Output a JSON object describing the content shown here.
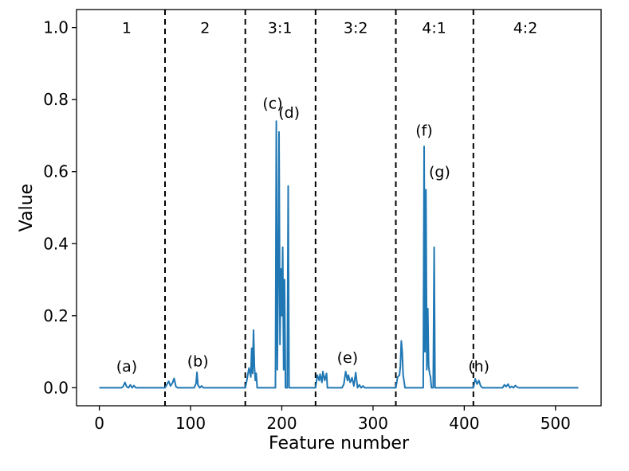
{
  "chart_data": {
    "type": "line",
    "title": "",
    "xlabel": "Feature number",
    "ylabel": "Value",
    "xlim": [
      -25,
      550
    ],
    "ylim": [
      -0.05,
      1.05
    ],
    "xticks": [
      0,
      100,
      200,
      300,
      400,
      500
    ],
    "yticks": [
      0.0,
      0.2,
      0.4,
      0.6,
      0.8,
      1.0
    ],
    "xtick_labels": [
      "0",
      "100",
      "200",
      "300",
      "400",
      "500"
    ],
    "ytick_labels": [
      "0.0",
      "0.2",
      "0.4",
      "0.6",
      "0.8",
      "1.0"
    ],
    "grid": false,
    "color": "#1f77b4",
    "dividers": [
      72,
      160,
      237,
      325,
      410
    ],
    "regions": [
      {
        "label": "1",
        "x": 30,
        "y": 1.0
      },
      {
        "label": "2",
        "x": 116,
        "y": 1.0
      },
      {
        "label": "3:1",
        "x": 198,
        "y": 1.0
      },
      {
        "label": "3:2",
        "x": 281,
        "y": 1.0
      },
      {
        "label": "4:1",
        "x": 367,
        "y": 1.0
      },
      {
        "label": "4:2",
        "x": 467,
        "y": 1.0
      }
    ],
    "annotations": [
      {
        "text": "(a)",
        "x": 30,
        "y": 0.06
      },
      {
        "text": "(b)",
        "x": 108,
        "y": 0.075
      },
      {
        "text": "(c)",
        "x": 190,
        "y": 0.79
      },
      {
        "text": "(d)",
        "x": 208,
        "y": 0.765
      },
      {
        "text": "(e)",
        "x": 272,
        "y": 0.085
      },
      {
        "text": "(f)",
        "x": 356,
        "y": 0.715
      },
      {
        "text": "(g)",
        "x": 373,
        "y": 0.6
      },
      {
        "text": "(h)",
        "x": 416,
        "y": 0.06
      }
    ],
    "x": [
      0,
      24,
      26,
      28,
      30,
      32,
      34,
      36,
      38,
      40,
      72,
      76,
      78,
      80,
      82,
      84,
      86,
      104,
      106,
      107,
      108,
      110,
      112,
      114,
      160,
      162,
      164,
      166,
      167,
      168,
      169,
      170,
      171,
      172,
      173,
      175,
      177,
      179,
      190,
      193,
      194,
      195,
      196,
      197,
      198,
      199,
      200,
      201,
      202,
      203,
      204,
      205,
      206,
      207,
      208,
      209,
      210,
      237,
      239,
      241,
      242,
      244,
      245,
      247,
      249,
      250,
      252,
      253,
      254,
      256,
      266,
      268,
      270,
      272,
      273,
      275,
      277,
      279,
      281,
      283,
      285,
      287,
      289,
      291,
      293,
      325,
      327,
      329,
      330,
      331,
      332,
      333,
      335,
      337,
      352,
      355,
      356,
      357,
      358,
      359,
      360,
      361,
      362,
      363,
      364,
      365,
      366,
      367,
      368,
      369,
      370,
      371,
      372,
      373,
      374,
      375,
      410,
      412,
      414,
      416,
      418,
      420,
      422,
      442,
      444,
      446,
      448,
      450,
      452,
      454,
      456,
      458,
      460,
      462,
      525
    ],
    "y": [
      0.0,
      0.0,
      0.003,
      0.015,
      0.003,
      0.0,
      0.008,
      0.0,
      0.006,
      0.0,
      0.0,
      0.018,
      0.005,
      0.013,
      0.026,
      0.003,
      0.0,
      0.0,
      0.012,
      0.043,
      0.008,
      0.0,
      0.005,
      0.0,
      0.0,
      0.025,
      0.055,
      0.03,
      0.11,
      0.04,
      0.16,
      0.06,
      0.02,
      0.04,
      0.0,
      0.0,
      0.0,
      0.0,
      0.0,
      0.0,
      0.74,
      0.05,
      0.3,
      0.71,
      0.12,
      0.33,
      0.2,
      0.39,
      0.05,
      0.3,
      0.0,
      0.0,
      0.0,
      0.56,
      0.0,
      0.0,
      0.0,
      0.0,
      0.035,
      0.02,
      0.038,
      0.015,
      0.045,
      0.02,
      0.04,
      0.0,
      0.0,
      0.0,
      0.0,
      0.0,
      0.0,
      0.01,
      0.045,
      0.02,
      0.035,
      0.015,
      0.028,
      0.005,
      0.042,
      0.0,
      0.008,
      0.0,
      0.005,
      0.0,
      0.0,
      0.0,
      0.03,
      0.035,
      0.06,
      0.13,
      0.1,
      0.035,
      0.0,
      0.0,
      0.0,
      0.0,
      0.67,
      0.1,
      0.55,
      0.05,
      0.22,
      0.06,
      0.04,
      0.03,
      0.0,
      0.0,
      0.0,
      0.39,
      0.0,
      0.0,
      0.0,
      0.0,
      0.0,
      0.0,
      0.0,
      0.0,
      0.0,
      0.025,
      0.01,
      0.02,
      0.005,
      0.0,
      0.0,
      0.0,
      0.008,
      0.003,
      0.01,
      0.0,
      0.004,
      0.0,
      0.006,
      0.002,
      0.0,
      0.0,
      0.0
    ]
  }
}
